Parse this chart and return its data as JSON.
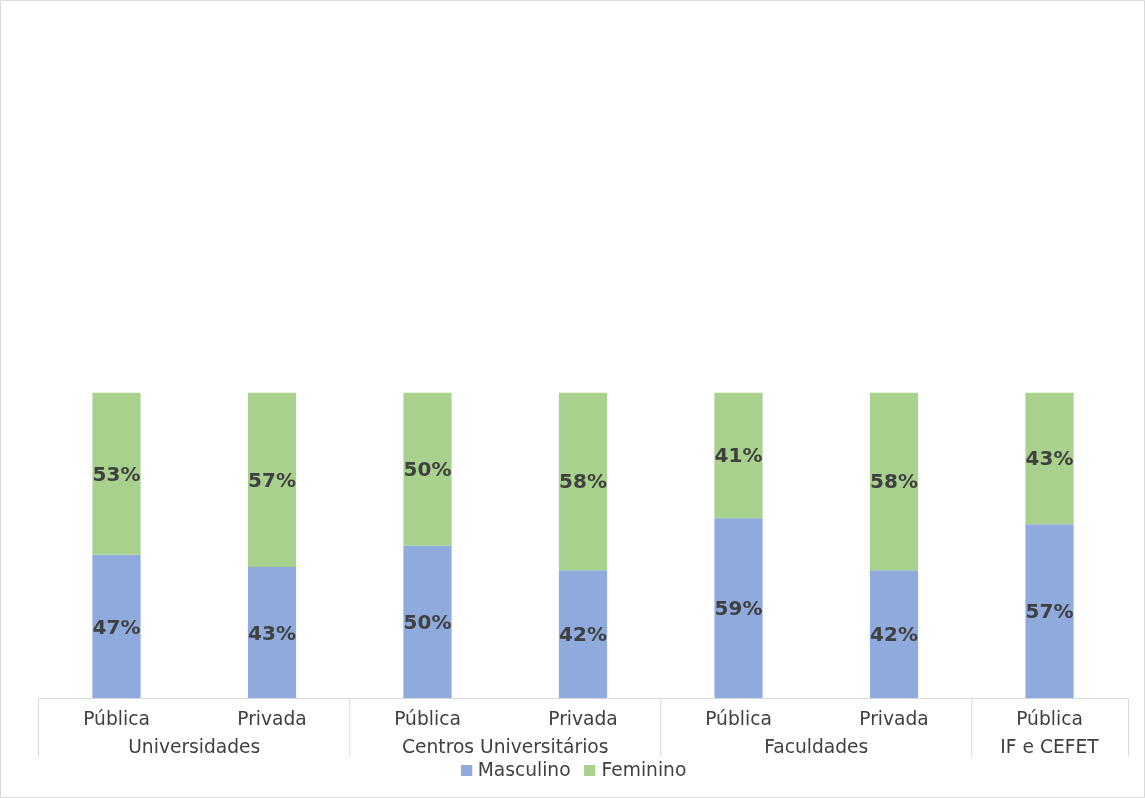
{
  "chart_data": {
    "type": "bar",
    "stacked": true,
    "legend": "bottom",
    "grid": false,
    "categories": [
      "Pública",
      "Privada",
      "Pública",
      "Privada",
      "Pública",
      "Privada",
      "Pública"
    ],
    "series": [
      {
        "name": "Masculino",
        "color": "#8faadc",
        "values": [
          47,
          43,
          50,
          42,
          59,
          42,
          57
        ],
        "value_labels": [
          "47%",
          "43%",
          "50%",
          "42%",
          "59%",
          "42%",
          "57%"
        ]
      },
      {
        "name": "Feminino",
        "color": "#a9d18e",
        "values": [
          53,
          57,
          50,
          58,
          41,
          58,
          43
        ],
        "value_labels": [
          "53%",
          "57%",
          "50%",
          "58%",
          "41%",
          "58%",
          "43%"
        ]
      }
    ],
    "annotations": [
      "Universidades",
      "Centros Universitários",
      "Faculdades",
      "IF e CEFET"
    ]
  }
}
